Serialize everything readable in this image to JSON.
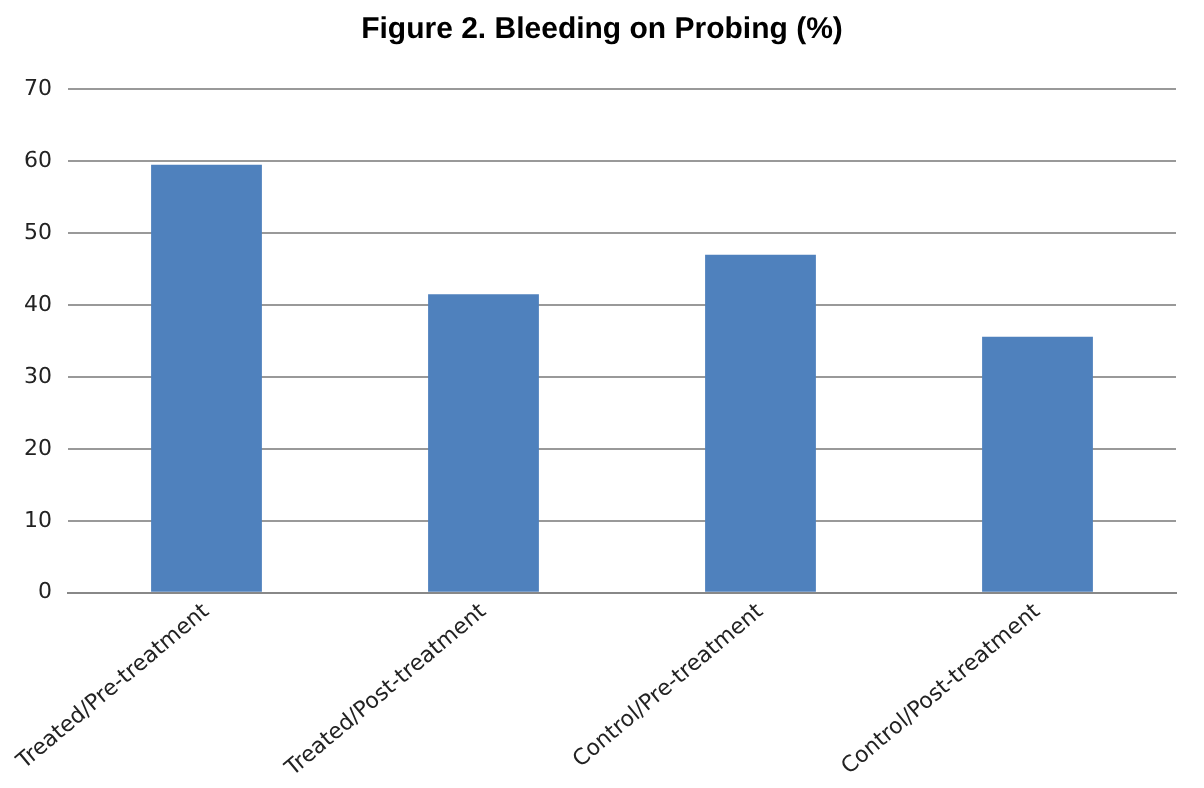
{
  "chart_data": {
    "type": "bar",
    "title": "Figure 2. Bleeding on Probing (%)",
    "categories": [
      "Treated/Pre-treatment",
      "Treated/Post-treatment",
      "Control/Pre-treatment",
      "Control/Post-treatment"
    ],
    "values": [
      59.5,
      41.5,
      47.0,
      35.6
    ],
    "color": "#4f81bd",
    "ylim": [
      0,
      70
    ],
    "yticks": [
      0,
      10,
      20,
      30,
      40,
      50,
      60,
      70
    ],
    "grid": "y",
    "legend": false
  }
}
